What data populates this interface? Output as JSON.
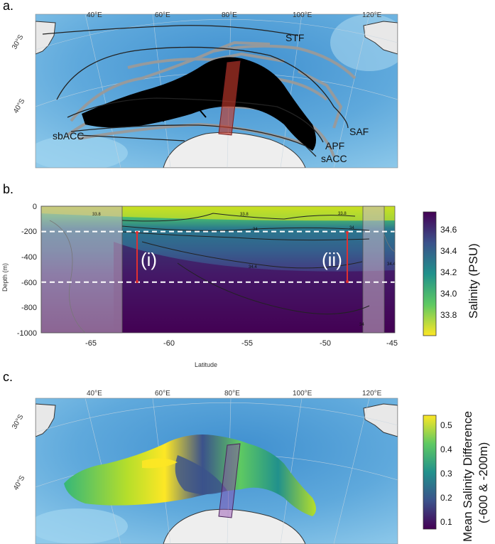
{
  "panels": {
    "a": {
      "letter": "a."
    },
    "b": {
      "letter": "b."
    },
    "c": {
      "letter": "c."
    }
  },
  "map": {
    "longitudes": [
      "40°E",
      "60°E",
      "80°E",
      "100°E",
      "120°E"
    ],
    "latitudes": [
      "30°S",
      "40°S"
    ]
  },
  "fronts": [
    "STF",
    "SAF",
    "APF",
    "sACC",
    "sbACC"
  ],
  "section": {
    "depth_axis_title": "Depth (m)",
    "depth_ticks": [
      "0",
      "-200",
      "-400",
      "-600",
      "-800",
      "-1000"
    ],
    "lat_axis_title": "Latitude",
    "lat_ticks": [
      "-65",
      "-60",
      "-55",
      "-50",
      "-45"
    ],
    "region_labels": [
      "(i)",
      "(ii)"
    ],
    "contour_labels": [
      "33.8",
      "33.8",
      "33.8",
      "34",
      "34",
      "34.4",
      "34.4",
      "34"
    ]
  },
  "colorbar_b": {
    "title": "Salinity (PSU)",
    "ticks": [
      "34.6",
      "34.4",
      "34.2",
      "34.0",
      "33.8"
    ]
  },
  "colorbar_c": {
    "title_line1": "Mean Salinity Difference",
    "title_line2": "(-600 & -200m)",
    "ticks": [
      "0.5",
      "0.4",
      "0.3",
      "0.2",
      "0.1"
    ]
  },
  "colors": {
    "ocean_shallow": "#8ec9ea",
    "ocean_deep": "#3f8fcf",
    "land": "#e8e8e8",
    "track_black": "#000000",
    "track_grey": "#9a9a9a",
    "transect_red": "#c0392b",
    "dashed_line": "#ffffff",
    "viridis_high": "#440154",
    "viridis_low": "#fde725"
  }
}
